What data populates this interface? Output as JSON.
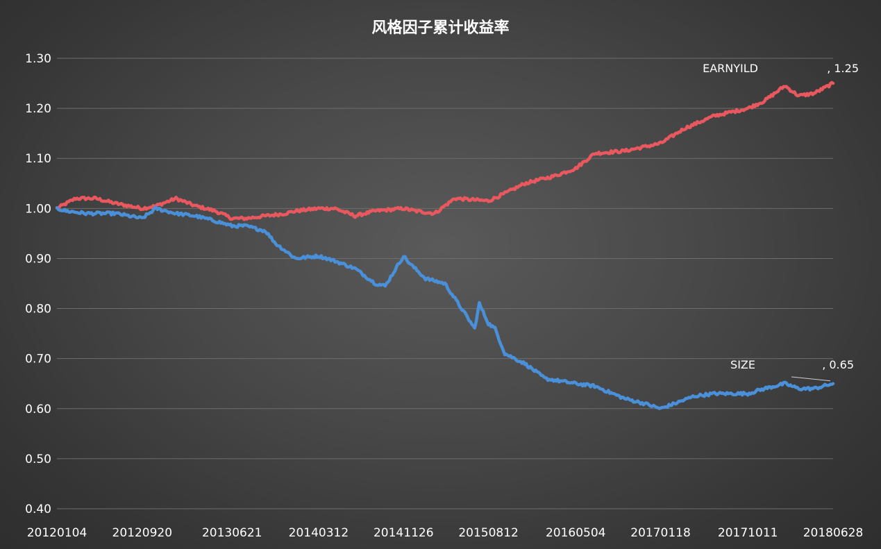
{
  "chart_data": {
    "type": "line",
    "title": "风格因子累计收益率",
    "xlabel": "",
    "ylabel": "",
    "ylim": [
      0.4,
      1.3
    ],
    "yticks": [
      "0.40",
      "0.50",
      "0.60",
      "0.70",
      "0.80",
      "0.90",
      "1.00",
      "1.10",
      "1.20",
      "1.30"
    ],
    "xticks": [
      "20120104",
      "20120920",
      "20130621",
      "20140312",
      "20141126",
      "20150812",
      "20160504",
      "20170118",
      "20171011",
      "20180628"
    ],
    "grid": true,
    "legend": "none",
    "series": [
      {
        "name": "EARNYILD",
        "color": "#e8585e",
        "end_label": ", 1.25",
        "x": [
          "20120104",
          "20120301",
          "20120501",
          "20120701",
          "20120920",
          "20121101",
          "20130101",
          "20130301",
          "20130501",
          "20130621",
          "20130801",
          "20131001",
          "20131201",
          "20140101",
          "20140312",
          "20140501",
          "20140701",
          "20140901",
          "20141126",
          "20150101",
          "20150301",
          "20150501",
          "20150812",
          "20151001",
          "20151201",
          "20160301",
          "20160504",
          "20160701",
          "20161001",
          "20170118",
          "20170401",
          "20170701",
          "20171011",
          "20171201",
          "20180201",
          "20180315",
          "20180501",
          "20180628"
        ],
        "values": [
          1.0,
          1.02,
          1.02,
          1.01,
          1.0,
          1.005,
          1.02,
          1.005,
          0.995,
          0.98,
          0.98,
          0.985,
          0.99,
          0.995,
          1.0,
          1.0,
          0.985,
          0.995,
          1.0,
          0.995,
          0.99,
          1.02,
          1.015,
          1.03,
          1.05,
          1.065,
          1.08,
          1.11,
          1.115,
          1.13,
          1.16,
          1.185,
          1.2,
          1.215,
          1.245,
          1.225,
          1.23,
          1.25
        ]
      },
      {
        "name": "SIZE",
        "color": "#4a90d9",
        "end_label": ", 0.65",
        "x": [
          "20120104",
          "20120201",
          "20120401",
          "20120701",
          "20120920",
          "20121101",
          "20130101",
          "20130301",
          "20130501",
          "20130621",
          "20130801",
          "20131001",
          "20131101",
          "20140101",
          "20140312",
          "20140501",
          "20140701",
          "20140901",
          "20141001",
          "20141126",
          "20141215",
          "20150201",
          "20150401",
          "20150601",
          "20150701",
          "20150715",
          "20150812",
          "20150901",
          "20151001",
          "20151201",
          "20160201",
          "20160504",
          "20160701",
          "20161001",
          "20161201",
          "20170118",
          "20170301",
          "20170501",
          "20170701",
          "20171011",
          "20171201",
          "20180201",
          "20180315",
          "20180501",
          "20180628"
        ],
        "values": [
          1.0,
          0.995,
          0.99,
          0.99,
          0.98,
          1.0,
          0.99,
          0.985,
          0.975,
          0.965,
          0.965,
          0.955,
          0.93,
          0.9,
          0.905,
          0.895,
          0.88,
          0.85,
          0.845,
          0.905,
          0.89,
          0.86,
          0.85,
          0.79,
          0.76,
          0.81,
          0.77,
          0.76,
          0.71,
          0.69,
          0.66,
          0.65,
          0.645,
          0.62,
          0.61,
          0.6,
          0.61,
          0.625,
          0.63,
          0.63,
          0.64,
          0.65,
          0.64,
          0.64,
          0.65
        ]
      }
    ]
  }
}
